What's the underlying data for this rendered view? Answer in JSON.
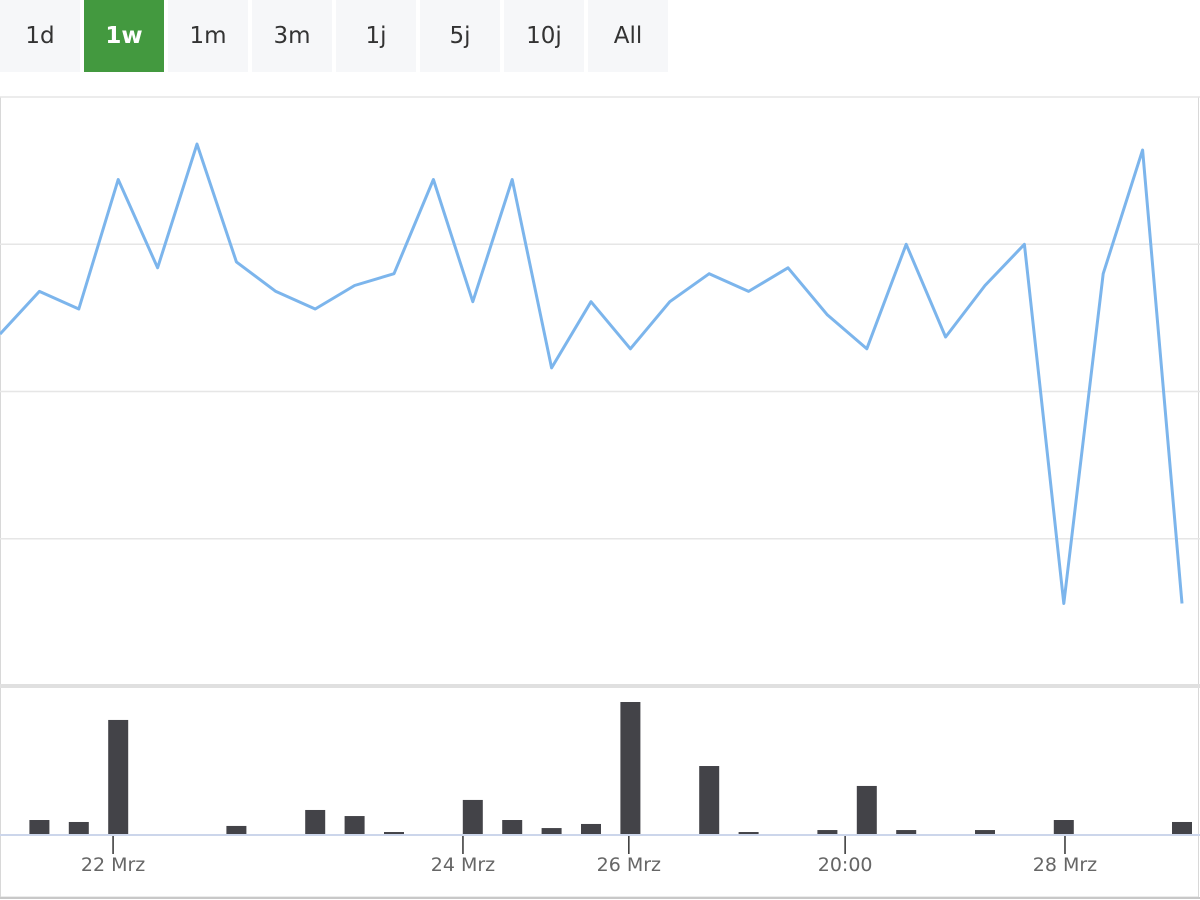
{
  "range_buttons": [
    {
      "label": "1d",
      "active": false
    },
    {
      "label": "1w",
      "active": true
    },
    {
      "label": "1m",
      "active": false
    },
    {
      "label": "3m",
      "active": false
    },
    {
      "label": "1j",
      "active": false
    },
    {
      "label": "5j",
      "active": false
    },
    {
      "label": "10j",
      "active": false
    },
    {
      "label": "All",
      "active": false
    }
  ],
  "colors": {
    "accent": "#43993f",
    "line": "#7cb5ec",
    "volume": "#434348",
    "grid": "#e6e6e6"
  },
  "chart_data": [
    {
      "type": "line",
      "grid": true,
      "ylim": [
        0,
        4
      ],
      "x": [
        0,
        1,
        2,
        3,
        4,
        5,
        6,
        7,
        8,
        9,
        10,
        11,
        12,
        13,
        14,
        15,
        16,
        17,
        18,
        19,
        20,
        21,
        22,
        23,
        24,
        25,
        26,
        27,
        28,
        29,
        30
      ],
      "values": [
        2.39,
        2.68,
        2.56,
        3.44,
        2.84,
        3.68,
        2.88,
        2.68,
        2.56,
        2.72,
        2.8,
        3.44,
        2.61,
        3.44,
        2.16,
        2.61,
        2.29,
        2.61,
        2.8,
        2.68,
        2.84,
        2.52,
        2.29,
        3.0,
        2.37,
        2.72,
        3.0,
        0.56,
        2.8,
        3.64,
        0.56
      ]
    },
    {
      "type": "bar",
      "ylim": [
        0,
        100
      ],
      "x": [
        1,
        2,
        3,
        6,
        8,
        9,
        10,
        12,
        13,
        14,
        15,
        16,
        18,
        19,
        21,
        22,
        23,
        25,
        27,
        30
      ],
      "values": [
        10.6,
        9.1,
        86.4,
        6.1,
        18.2,
        13.6,
        1.5,
        25.8,
        10.6,
        4.5,
        7.6,
        100,
        51.5,
        1.5,
        3,
        36.4,
        3,
        3,
        10.6,
        9.1
      ],
      "xticks": [
        {
          "label": "22 Mrz",
          "at": 2.87
        },
        {
          "label": "24 Mrz",
          "at": 11.75
        },
        {
          "label": "26 Mrz",
          "at": 15.96
        },
        {
          "label": "20:00",
          "at": 21.45
        },
        {
          "label": "28 Mrz",
          "at": 27.03
        }
      ]
    }
  ]
}
